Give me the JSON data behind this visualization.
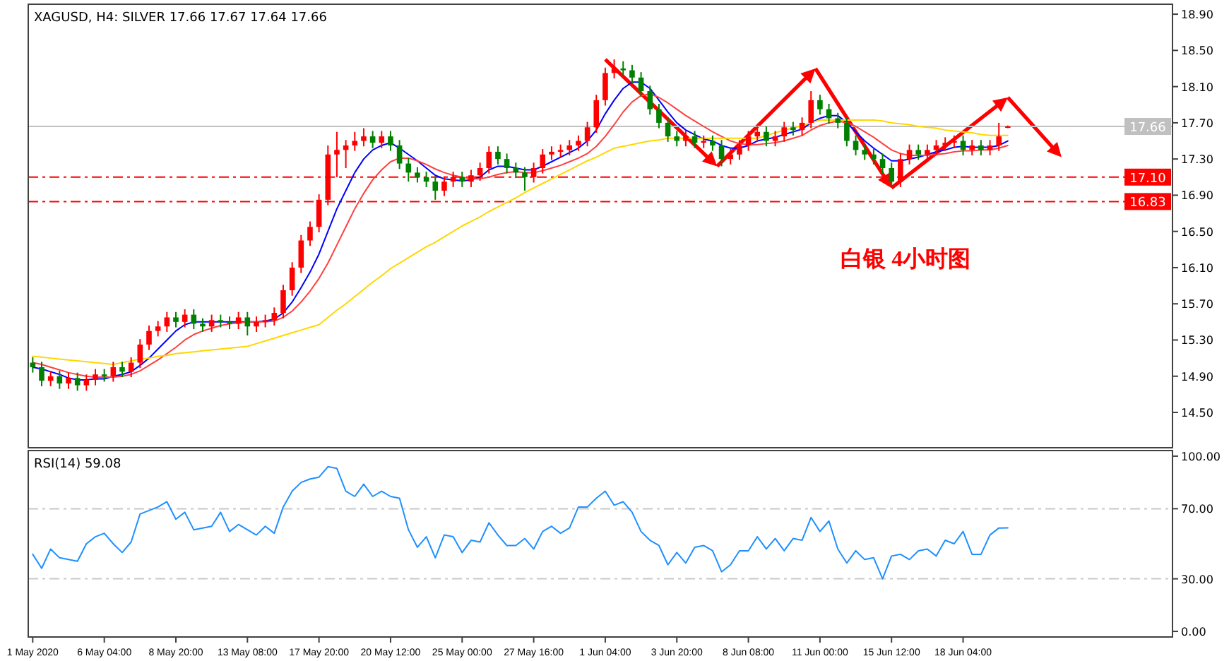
{
  "chart_data": [
    {
      "type": "candlestick",
      "title": "XAGUSD, H4: SILVER 17.66 17.67 17.64 17.66",
      "categories": [
        null,
        null,
        null,
        null,
        null,
        null,
        null,
        null,
        null,
        null,
        null,
        null,
        null,
        null,
        null,
        null,
        null,
        null,
        null,
        null,
        null,
        null,
        null,
        null,
        null,
        null,
        null,
        null,
        null,
        null,
        null,
        null,
        null,
        null,
        null,
        null,
        null,
        null,
        null,
        null,
        null,
        null,
        null,
        null,
        null,
        null,
        null,
        null,
        null,
        null,
        null,
        null,
        null,
        null,
        null,
        null,
        null,
        null,
        null,
        null,
        null,
        null,
        null,
        null,
        null,
        null,
        null,
        null,
        null,
        null,
        null,
        null,
        null,
        null,
        null,
        null,
        null,
        null,
        null,
        null,
        null,
        null,
        null,
        null,
        null,
        null,
        null,
        null,
        null,
        null,
        null,
        null,
        null,
        null,
        null,
        null,
        null,
        null,
        null,
        null,
        null,
        null,
        null,
        null,
        null,
        null,
        null,
        null,
        null,
        null
      ],
      "ylim": [
        14.11,
        19.01
      ],
      "yticks": [
        {
          "value": 18.9,
          "label": "18.90"
        },
        {
          "value": 18.5,
          "label": "18.50"
        },
        {
          "value": 18.1,
          "label": "18.10"
        },
        {
          "value": 17.7,
          "label": "17.70"
        },
        {
          "value": 17.3,
          "label": "17.30"
        },
        {
          "value": 16.9,
          "label": "16.90"
        },
        {
          "value": 16.5,
          "label": "16.50"
        },
        {
          "value": 16.1,
          "label": "16.10"
        },
        {
          "value": 15.7,
          "label": "15.70"
        },
        {
          "value": 15.3,
          "label": "15.30"
        },
        {
          "value": 14.9,
          "label": "14.90"
        },
        {
          "value": 14.5,
          "label": "14.50"
        }
      ],
      "ohlc": [
        [
          15.05,
          15.11,
          14.94,
          15.0
        ],
        [
          15.0,
          15.06,
          14.79,
          14.85
        ],
        [
          14.85,
          14.96,
          14.79,
          14.9
        ],
        [
          14.9,
          14.96,
          14.76,
          14.82
        ],
        [
          14.82,
          14.94,
          14.76,
          14.88
        ],
        [
          14.88,
          14.94,
          14.74,
          14.8
        ],
        [
          14.8,
          14.92,
          14.74,
          14.86
        ],
        [
          14.86,
          14.98,
          14.8,
          14.92
        ],
        [
          14.92,
          14.98,
          14.84,
          14.9
        ],
        [
          14.9,
          15.06,
          14.84,
          15.0
        ],
        [
          15.0,
          15.06,
          14.89,
          14.95
        ],
        [
          14.95,
          15.11,
          14.89,
          15.05
        ],
        [
          15.05,
          15.31,
          14.99,
          15.25
        ],
        [
          15.25,
          15.46,
          15.19,
          15.4
        ],
        [
          15.4,
          15.51,
          15.34,
          15.45
        ],
        [
          15.45,
          15.61,
          15.39,
          15.55
        ],
        [
          15.55,
          15.61,
          15.44,
          15.5
        ],
        [
          15.5,
          15.64,
          15.44,
          15.58
        ],
        [
          15.58,
          15.64,
          15.42,
          15.48
        ],
        [
          15.48,
          15.54,
          15.39,
          15.45
        ],
        [
          15.45,
          15.58,
          15.39,
          15.52
        ],
        [
          15.52,
          15.58,
          15.44,
          15.5
        ],
        [
          15.5,
          15.56,
          15.42,
          15.48
        ],
        [
          15.48,
          15.61,
          15.42,
          15.55
        ],
        [
          15.55,
          15.61,
          15.35,
          15.45
        ],
        [
          15.45,
          15.56,
          15.39,
          15.5
        ],
        [
          15.5,
          15.58,
          15.44,
          15.52
        ],
        [
          15.52,
          15.66,
          15.46,
          15.6
        ],
        [
          15.6,
          15.91,
          15.54,
          15.85
        ],
        [
          15.85,
          16.16,
          15.79,
          16.1
        ],
        [
          16.1,
          16.46,
          16.04,
          16.4
        ],
        [
          16.4,
          16.61,
          16.34,
          16.55
        ],
        [
          16.55,
          16.91,
          16.49,
          16.85
        ],
        [
          16.85,
          17.45,
          16.79,
          17.35
        ],
        [
          17.35,
          17.6,
          17.1,
          17.4
        ],
        [
          17.4,
          17.51,
          17.2,
          17.45
        ],
        [
          17.45,
          17.6,
          17.39,
          17.5
        ],
        [
          17.5,
          17.64,
          17.44,
          17.55
        ],
        [
          17.55,
          17.61,
          17.42,
          17.48
        ],
        [
          17.48,
          17.61,
          17.42,
          17.55
        ],
        [
          17.55,
          17.61,
          17.39,
          17.45
        ],
        [
          17.45,
          17.51,
          17.19,
          17.25
        ],
        [
          17.25,
          17.31,
          17.05,
          17.15
        ],
        [
          17.15,
          17.21,
          17.04,
          17.1
        ],
        [
          17.1,
          17.16,
          16.99,
          17.05
        ],
        [
          17.05,
          17.11,
          16.85,
          16.95
        ],
        [
          16.95,
          17.11,
          16.89,
          17.05
        ],
        [
          17.05,
          17.16,
          16.99,
          17.1
        ],
        [
          17.1,
          17.16,
          16.99,
          17.05
        ],
        [
          17.05,
          17.18,
          16.99,
          17.12
        ],
        [
          17.12,
          17.26,
          17.06,
          17.2
        ],
        [
          17.2,
          17.44,
          17.14,
          17.38
        ],
        [
          17.38,
          17.44,
          17.24,
          17.3
        ],
        [
          17.3,
          17.36,
          17.14,
          17.2
        ],
        [
          17.2,
          17.26,
          17.09,
          17.15
        ],
        [
          17.15,
          17.21,
          16.95,
          17.1
        ],
        [
          17.1,
          17.26,
          17.04,
          17.2
        ],
        [
          17.2,
          17.41,
          17.14,
          17.35
        ],
        [
          17.35,
          17.44,
          17.29,
          17.38
        ],
        [
          17.38,
          17.46,
          17.32,
          17.4
        ],
        [
          17.4,
          17.51,
          17.34,
          17.45
        ],
        [
          17.45,
          17.56,
          17.39,
          17.5
        ],
        [
          17.5,
          17.71,
          17.44,
          17.65
        ],
        [
          17.65,
          18.01,
          17.59,
          17.95
        ],
        [
          17.95,
          18.31,
          17.89,
          18.25
        ],
        [
          18.25,
          18.4,
          18.19,
          18.3
        ],
        [
          18.3,
          18.38,
          18.22,
          18.28
        ],
        [
          18.28,
          18.34,
          18.14,
          18.2
        ],
        [
          18.2,
          18.26,
          17.99,
          18.05
        ],
        [
          18.05,
          18.11,
          17.79,
          17.85
        ],
        [
          17.85,
          17.91,
          17.64,
          17.7
        ],
        [
          17.7,
          17.76,
          17.49,
          17.55
        ],
        [
          17.55,
          17.61,
          17.44,
          17.5
        ],
        [
          17.5,
          17.61,
          17.44,
          17.55
        ],
        [
          17.55,
          17.61,
          17.42,
          17.48
        ],
        [
          17.48,
          17.56,
          17.42,
          17.5
        ],
        [
          17.5,
          17.56,
          17.39,
          17.45
        ],
        [
          17.45,
          17.51,
          17.22,
          17.3
        ],
        [
          17.3,
          17.41,
          17.24,
          17.35
        ],
        [
          17.35,
          17.51,
          17.29,
          17.45
        ],
        [
          17.45,
          17.61,
          17.39,
          17.55
        ],
        [
          17.55,
          17.66,
          17.49,
          17.6
        ],
        [
          17.6,
          17.66,
          17.44,
          17.5
        ],
        [
          17.5,
          17.61,
          17.44,
          17.55
        ],
        [
          17.55,
          17.71,
          17.49,
          17.65
        ],
        [
          17.65,
          17.71,
          17.56,
          17.62
        ],
        [
          17.62,
          17.76,
          17.56,
          17.7
        ],
        [
          17.7,
          18.05,
          17.64,
          17.95
        ],
        [
          17.95,
          18.01,
          17.79,
          17.85
        ],
        [
          17.85,
          17.91,
          17.69,
          17.75
        ],
        [
          17.75,
          17.81,
          17.64,
          17.7
        ],
        [
          17.7,
          17.76,
          17.44,
          17.5
        ],
        [
          17.5,
          17.56,
          17.34,
          17.4
        ],
        [
          17.4,
          17.46,
          17.29,
          17.35
        ],
        [
          17.35,
          17.41,
          17.24,
          17.3
        ],
        [
          17.3,
          17.36,
          17.14,
          17.2
        ],
        [
          17.2,
          17.26,
          16.99,
          17.05
        ],
        [
          17.05,
          17.36,
          16.99,
          17.3
        ],
        [
          17.3,
          17.46,
          17.24,
          17.4
        ],
        [
          17.4,
          17.46,
          17.29,
          17.35
        ],
        [
          17.35,
          17.46,
          17.29,
          17.4
        ],
        [
          17.4,
          17.51,
          17.34,
          17.45
        ],
        [
          17.45,
          17.54,
          17.39,
          17.48
        ],
        [
          17.48,
          17.56,
          17.42,
          17.5
        ],
        [
          17.5,
          17.56,
          17.34,
          17.4
        ],
        [
          17.4,
          17.51,
          17.34,
          17.45
        ],
        [
          17.45,
          17.51,
          17.34,
          17.4
        ],
        [
          17.4,
          17.51,
          17.34,
          17.45
        ],
        [
          17.45,
          17.7,
          17.39,
          17.55
        ],
        [
          17.66,
          17.67,
          17.64,
          17.66
        ]
      ],
      "series": [
        {
          "type": "line",
          "color": "#0000ff",
          "values": [
            15.0,
            14.98,
            14.95,
            14.92,
            14.88,
            14.86,
            14.86,
            14.87,
            14.87,
            14.9,
            14.92,
            14.95,
            15.02,
            15.1,
            15.2,
            15.3,
            15.4,
            15.47,
            15.5,
            15.5,
            15.5,
            15.5,
            15.5,
            15.5,
            15.5,
            15.5,
            15.51,
            15.53,
            15.6,
            15.72,
            15.88,
            16.05,
            16.25,
            16.5,
            16.75,
            16.95,
            17.15,
            17.3,
            17.4,
            17.45,
            17.48,
            17.42,
            17.35,
            17.28,
            17.2,
            17.12,
            17.08,
            17.07,
            17.06,
            17.07,
            17.1,
            17.18,
            17.22,
            17.22,
            17.2,
            17.18,
            17.18,
            17.22,
            17.27,
            17.32,
            17.37,
            17.42,
            17.5,
            17.62,
            17.8,
            17.95,
            18.08,
            18.15,
            18.15,
            18.08,
            17.95,
            17.82,
            17.7,
            17.62,
            17.57,
            17.52,
            17.5,
            17.45,
            17.42,
            17.42,
            17.45,
            17.5,
            17.52,
            17.54,
            17.57,
            17.6,
            17.63,
            17.7,
            17.75,
            17.78,
            17.78,
            17.7,
            17.6,
            17.5,
            17.42,
            17.35,
            17.28,
            17.28,
            17.3,
            17.32,
            17.35,
            17.38,
            17.4,
            17.43,
            17.44,
            17.43,
            17.43,
            17.43,
            17.45,
            17.5
          ]
        },
        {
          "type": "line",
          "color": "#ff4040",
          "values": [
            15.05,
            15.03,
            15.0,
            14.97,
            14.94,
            14.92,
            14.9,
            14.89,
            14.89,
            14.89,
            14.9,
            14.92,
            14.96,
            15.02,
            15.08,
            15.15,
            15.22,
            15.3,
            15.36,
            15.4,
            15.43,
            15.46,
            15.48,
            15.49,
            15.5,
            15.5,
            15.5,
            15.51,
            15.55,
            15.62,
            15.72,
            15.84,
            15.98,
            16.15,
            16.35,
            16.55,
            16.75,
            16.92,
            17.07,
            17.18,
            17.27,
            17.31,
            17.31,
            17.28,
            17.24,
            17.19,
            17.15,
            17.12,
            17.1,
            17.08,
            17.08,
            17.1,
            17.13,
            17.15,
            17.16,
            17.15,
            17.15,
            17.17,
            17.2,
            17.23,
            17.27,
            17.31,
            17.36,
            17.44,
            17.55,
            17.68,
            17.82,
            17.93,
            18.0,
            18.02,
            17.98,
            17.92,
            17.85,
            17.78,
            17.72,
            17.66,
            17.6,
            17.55,
            17.5,
            17.47,
            17.46,
            17.46,
            17.47,
            17.48,
            17.5,
            17.53,
            17.56,
            17.62,
            17.67,
            17.7,
            17.72,
            17.7,
            17.66,
            17.6,
            17.54,
            17.47,
            17.4,
            17.36,
            17.34,
            17.34,
            17.34,
            17.35,
            17.36,
            17.38,
            17.39,
            17.39,
            17.4,
            17.4,
            17.42,
            17.45
          ]
        },
        {
          "type": "line",
          "color": "#ffd700",
          "values": [
            15.12,
            15.11,
            15.1,
            15.09,
            15.08,
            15.07,
            15.06,
            15.05,
            15.04,
            15.03,
            15.05,
            15.07,
            15.09,
            15.1,
            15.12,
            15.13,
            15.15,
            15.16,
            15.17,
            15.18,
            15.19,
            15.2,
            15.21,
            15.22,
            15.23,
            15.26,
            15.29,
            15.32,
            15.35,
            15.38,
            15.41,
            15.44,
            15.47,
            15.55,
            15.63,
            15.7,
            15.78,
            15.86,
            15.94,
            16.01,
            16.09,
            16.15,
            16.21,
            16.27,
            16.33,
            16.38,
            16.44,
            16.5,
            16.56,
            16.61,
            16.66,
            16.72,
            16.77,
            16.82,
            16.87,
            16.93,
            16.98,
            17.03,
            17.08,
            17.13,
            17.18,
            17.23,
            17.28,
            17.32,
            17.37,
            17.42,
            17.44,
            17.46,
            17.48,
            17.5,
            17.51,
            17.53,
            17.53,
            17.53,
            17.53,
            17.53,
            17.53,
            17.53,
            17.53,
            17.53,
            17.53,
            17.53,
            17.56,
            17.59,
            17.62,
            17.64,
            17.67,
            17.7,
            17.73,
            17.73,
            17.73,
            17.73,
            17.73,
            17.73,
            17.73,
            17.72,
            17.7,
            17.69,
            17.68,
            17.66,
            17.65,
            17.64,
            17.62,
            17.61,
            17.6,
            17.59,
            17.57,
            17.56,
            17.56,
            17.56
          ]
        }
      ],
      "ref_lines": [
        {
          "axis": "y",
          "value": 17.66,
          "label": "17.66",
          "color": "#c0c0c0",
          "line_style": "solid"
        },
        {
          "axis": "y",
          "value": 17.1,
          "label": "17.10",
          "color": "#ff0000",
          "line_style": "dashed"
        },
        {
          "axis": "y",
          "value": 16.83,
          "label": "16.83",
          "color": "#ff0000",
          "line_style": "dashed"
        }
      ],
      "annotations": [
        "白银 4小时图"
      ]
    },
    {
      "type": "line",
      "title": "RSI(14) 59.08",
      "categories": [
        "1 May 2020",
        null,
        null,
        null,
        null,
        null,
        null,
        null,
        "6 May 04:00",
        null,
        null,
        null,
        null,
        null,
        null,
        null,
        "8 May 20:00",
        null,
        null,
        null,
        null,
        null,
        null,
        null,
        "13 May 08:00",
        null,
        null,
        null,
        null,
        null,
        null,
        null,
        "17 May 20:00",
        null,
        null,
        null,
        null,
        null,
        null,
        null,
        "20 May 12:00",
        null,
        null,
        null,
        null,
        null,
        null,
        null,
        "25 May 00:00",
        null,
        null,
        null,
        null,
        null,
        null,
        null,
        "27 May 16:00",
        null,
        null,
        null,
        null,
        null,
        null,
        null,
        "1 Jun 04:00",
        null,
        null,
        null,
        null,
        null,
        null,
        null,
        "3 Jun 20:00",
        null,
        null,
        null,
        null,
        null,
        null,
        null,
        "8 Jun 08:00",
        null,
        null,
        null,
        null,
        null,
        null,
        null,
        "11 Jun 00:00",
        null,
        null,
        null,
        null,
        null,
        null,
        null,
        "15 Jun 12:00",
        null,
        null,
        null,
        null,
        null,
        null,
        null,
        "18 Jun 04:00",
        null,
        null,
        null,
        null,
        null
      ],
      "ylim": [
        -3.2,
        103.2
      ],
      "yticks": [
        {
          "value": 100,
          "label": "100.00"
        },
        {
          "value": 70,
          "label": "70.00"
        },
        {
          "value": 30,
          "label": "30.00"
        },
        {
          "value": 0,
          "label": "0.00"
        }
      ],
      "series": [
        {
          "color": "#1e90ff",
          "values": [
            44,
            36,
            47,
            42,
            41,
            40,
            50,
            54,
            56,
            50,
            45,
            51,
            67,
            69,
            71,
            74,
            64,
            68,
            58,
            59,
            60,
            68,
            57,
            61,
            58,
            55,
            60,
            56,
            71,
            80,
            85,
            87,
            88,
            94,
            93,
            80,
            77,
            84,
            77,
            80,
            77,
            76,
            58,
            48,
            54,
            42,
            55,
            54,
            45,
            52,
            51,
            62,
            55,
            49,
            49,
            53,
            47,
            57,
            60,
            56,
            59,
            71,
            71,
            76,
            80,
            72,
            74,
            68,
            57,
            52,
            49,
            38,
            45,
            39,
            48,
            49,
            46,
            34,
            38,
            46,
            46,
            54,
            47,
            53,
            46,
            53,
            52,
            65,
            57,
            63,
            47,
            39,
            46,
            41,
            42,
            30,
            43,
            44,
            41,
            46,
            47,
            43,
            52,
            50,
            57,
            44,
            44,
            55,
            59,
            59.08
          ]
        }
      ],
      "ref_lines": [
        {
          "axis": "y",
          "value": 70,
          "color": "#c8c8c8",
          "line_style": "dashed"
        },
        {
          "axis": "y",
          "value": 30,
          "color": "#c8c8c8",
          "line_style": "dashed"
        }
      ]
    }
  ]
}
